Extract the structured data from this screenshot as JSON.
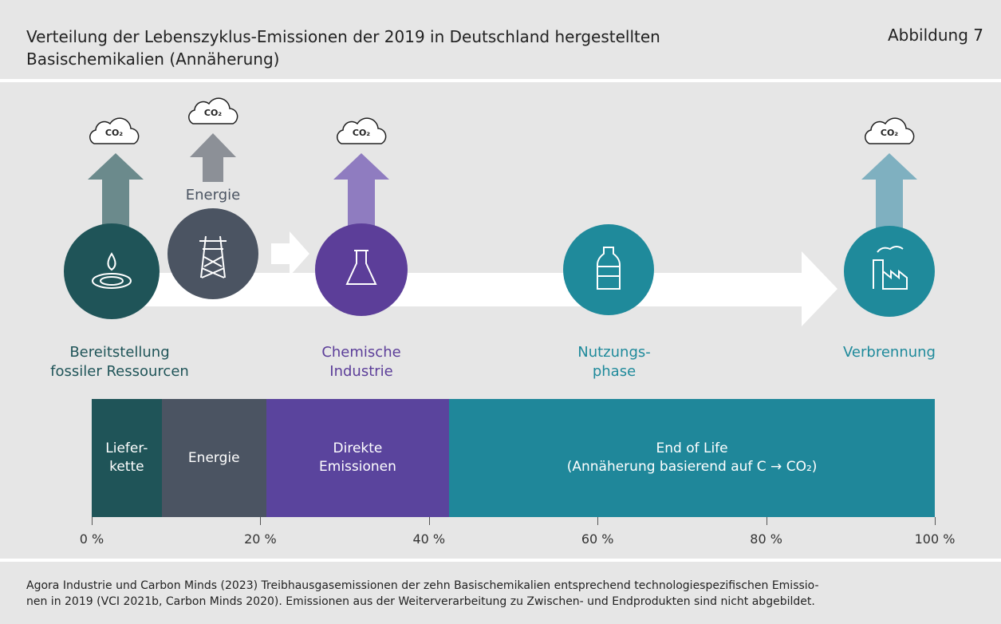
{
  "header": {
    "title": "Verteilung der Lebenszyklus-Emissionen der 2019 in Deutschland hergestellten\nBasischemikalien (Annäherung)",
    "figure": "Abbildung 7"
  },
  "diagram": {
    "co2": "CO₂",
    "energy": "Energie",
    "stages": [
      "Bereitstellung\nfossiler Ressourcen",
      "Chemische\nIndustrie",
      "Nutzungs-\nphase",
      "Verbrennung"
    ]
  },
  "chart_data": {
    "type": "stacked_bar",
    "categories": [
      "Liefer-\nkette",
      "Energie",
      "Direkte\nEmissionen",
      "End of Life\n(Annäherung basierend auf C → CO₂)"
    ],
    "values": [
      8.3,
      12.4,
      21.7,
      57.6
    ],
    "colors": [
      "#1f5458",
      "#4b5462",
      "#5a449d",
      "#1f879a"
    ],
    "xlim": [
      0,
      100
    ],
    "xticks": [
      {
        "value": 0,
        "label": "0 %"
      },
      {
        "value": 20,
        "label": "20 %"
      },
      {
        "value": 40,
        "label": "40 %"
      },
      {
        "value": 60,
        "label": "60 %"
      },
      {
        "value": 80,
        "label": "80 %"
      },
      {
        "value": 100,
        "label": "100 %"
      }
    ]
  },
  "footer": {
    "source": "Agora Industrie und Carbon Minds (2023) Treibhausgasemissionen der zehn Basischemikalien entsprechend technologiespezifischen Emissio-\nnen in 2019 (VCI 2021b, Carbon Minds 2020). Emissionen aus der Weiterverarbeitung zu Zwischen- und Endprodukten sind nicht abgebildet."
  }
}
